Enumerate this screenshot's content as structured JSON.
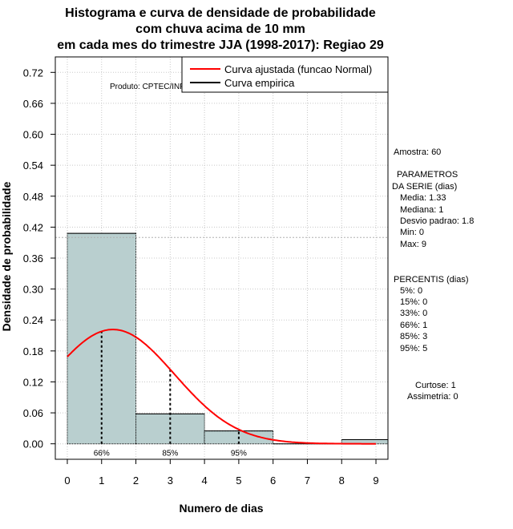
{
  "chart_data": {
    "type": "bar",
    "title_lines": [
      "Histograma e curva de densidade de probabilidade",
      "com chuva acima de 10 mm",
      "em cada mes do trimestre JJA (1998-2017): Regiao 29"
    ],
    "xlabel": "Numero de dias",
    "ylabel": "Densidade de probabilidade",
    "xlim": [
      -0.35,
      9.35
    ],
    "ylim": [
      -0.03,
      0.75
    ],
    "x_ticks": [
      0,
      1,
      2,
      3,
      4,
      5,
      6,
      7,
      8,
      9
    ],
    "y_ticks": [
      0.0,
      0.06,
      0.12,
      0.18,
      0.24,
      0.3,
      0.36,
      0.42,
      0.48,
      0.54,
      0.6,
      0.66,
      0.72
    ],
    "y_tick_labels": [
      "0.00",
      "0.06",
      "0.12",
      "0.18",
      "0.24",
      "0.30",
      "0.36",
      "0.42",
      "0.48",
      "0.54",
      "0.60",
      "0.66",
      "0.72"
    ],
    "bins": [
      {
        "from": 0,
        "to": 2,
        "density": 0.408
      },
      {
        "from": 2,
        "to": 4,
        "density": 0.058
      },
      {
        "from": 4,
        "to": 6,
        "density": 0.025
      },
      {
        "from": 6,
        "to": 8,
        "density": 0.0
      },
      {
        "from": 8,
        "to": 10,
        "density": 0.008
      }
    ],
    "hline_y": 0.4,
    "normal_curve": {
      "mean": 1.33,
      "sd": 1.8,
      "x_from": 0,
      "x_to": 9
    },
    "percentile_lines": [
      {
        "x": 1,
        "label": "66%"
      },
      {
        "x": 3,
        "label": "85%"
      },
      {
        "x": 5,
        "label": "95%"
      }
    ],
    "legend": [
      {
        "label": "Curva ajustada (funcao Normal)",
        "color": "#ff0000"
      },
      {
        "label": "Curva empirica",
        "color": "#000000"
      }
    ],
    "credit": "Produto: CPTEC/INPE",
    "colors": {
      "bar_fill": "#b9cfcf",
      "curve": "#ff0000",
      "grid": "#c8c8c8"
    }
  },
  "side_panel": {
    "sample": "Amostra: 60",
    "params_title_1": "PARAMETROS",
    "params_title_2": "DA SERIE (dias)",
    "media": "Media: 1.33",
    "mediana": "Mediana: 1",
    "desvio": "Desvio padrao: 1.8",
    "min": "Min: 0",
    "max": "Max: 9",
    "percentis_title": "PERCENTIS (dias)",
    "p5": "5%: 0",
    "p15": "15%: 0",
    "p33": "33%: 0",
    "p66": "66%: 1",
    "p85": "85%: 3",
    "p95": "95%: 5",
    "curtose": "Curtose: 1",
    "assimetria": "Assimetria: 0"
  }
}
